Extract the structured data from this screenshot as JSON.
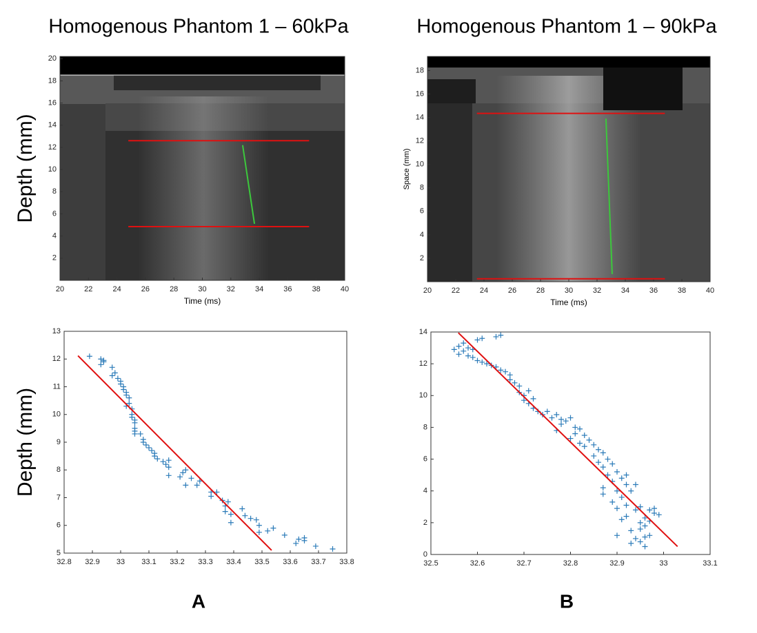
{
  "chart_data": [
    {
      "type": "image",
      "title": "Homogenous Phantom 1 – 60kPa",
      "ylabel": "Depth (mm)",
      "xlabel": "Time (ms)",
      "xlim": [
        20,
        40
      ],
      "ylim": [
        0,
        20.2
      ],
      "xticks": [
        20,
        22,
        24,
        26,
        28,
        30,
        32,
        34,
        36,
        38,
        40
      ],
      "yticks": [
        2,
        4,
        6,
        8,
        10,
        12,
        14,
        16,
        18,
        20
      ],
      "lines": [
        {
          "color": "#e01010",
          "x": [
            24.8,
            37.5
          ],
          "values": [
            12.6,
            12.6
          ]
        },
        {
          "color": "#e01010",
          "x": [
            24.8,
            37.5
          ],
          "values": [
            4.85,
            4.85
          ]
        },
        {
          "color": "#3cc83c",
          "x": [
            32.83,
            33.66
          ],
          "values": [
            12.2,
            5.1
          ]
        }
      ]
    },
    {
      "type": "image",
      "title": "Homogenous Phantom 1 – 90kPa",
      "ylabel": "Space (mm)",
      "xlabel": "Time (ms)",
      "xlim": [
        20,
        40
      ],
      "ylim": [
        0,
        19.2
      ],
      "xticks": [
        20,
        22,
        24,
        26,
        28,
        30,
        32,
        34,
        36,
        38,
        40
      ],
      "yticks": [
        2,
        4,
        6,
        8,
        10,
        12,
        14,
        16,
        18
      ],
      "lines": [
        {
          "color": "#e01010",
          "x": [
            23.5,
            36.8
          ],
          "values": [
            14.35,
            14.35
          ]
        },
        {
          "color": "#e01010",
          "x": [
            23.5,
            36.8
          ],
          "values": [
            0.25,
            0.25
          ]
        },
        {
          "color": "#3cc83c",
          "x": [
            32.63,
            33.07
          ],
          "values": [
            13.9,
            0.65
          ]
        }
      ]
    },
    {
      "type": "scatter",
      "ylabel": "Depth (mm)",
      "panel_label": "A",
      "xlim": [
        32.8,
        33.8
      ],
      "ylim": [
        5,
        13
      ],
      "xticks": [
        32.8,
        32.9,
        33,
        33.1,
        33.2,
        33.3,
        33.4,
        33.5,
        33.6,
        33.7,
        33.8
      ],
      "yticks": [
        5,
        6,
        7,
        8,
        9,
        10,
        11,
        12,
        13
      ],
      "color": "#2a7ab8",
      "x": [
        32.89,
        32.93,
        32.93,
        32.94,
        32.94,
        32.97,
        32.98,
        32.97,
        32.99,
        33.0,
        33.0,
        33.01,
        33.01,
        33.02,
        33.02,
        33.03,
        33.03,
        33.02,
        33.04,
        33.04,
        33.04,
        33.05,
        33.05,
        33.05,
        33.05,
        33.05,
        33.07,
        33.08,
        33.08,
        33.09,
        33.1,
        33.11,
        33.12,
        33.12,
        33.13,
        33.15,
        33.16,
        33.17,
        33.17,
        33.17,
        33.21,
        33.22,
        33.23,
        33.23,
        33.25,
        33.27,
        33.28,
        33.32,
        33.32,
        33.34,
        33.36,
        33.37,
        33.38,
        33.37,
        33.39,
        33.39,
        33.43,
        33.44,
        33.46,
        33.48,
        33.49,
        33.49,
        33.52,
        33.54,
        33.58,
        33.62,
        33.63,
        33.65,
        33.65,
        33.69,
        33.75
      ],
      "values": [
        12.1,
        12.0,
        11.8,
        11.9,
        11.95,
        11.7,
        11.5,
        11.4,
        11.3,
        11.2,
        11.1,
        11.0,
        10.9,
        10.7,
        10.8,
        10.6,
        10.4,
        10.3,
        10.2,
        10.0,
        9.9,
        9.8,
        9.7,
        9.5,
        9.4,
        9.3,
        9.3,
        9.1,
        9.0,
        8.9,
        8.8,
        8.7,
        8.6,
        8.5,
        8.4,
        8.3,
        8.2,
        8.1,
        8.35,
        7.8,
        7.75,
        7.9,
        8.0,
        7.45,
        7.7,
        7.45,
        7.6,
        7.2,
        7.05,
        7.2,
        6.9,
        6.7,
        6.85,
        6.5,
        6.4,
        6.1,
        6.6,
        6.35,
        6.25,
        6.2,
        6.0,
        5.75,
        5.8,
        5.9,
        5.65,
        5.35,
        5.5,
        5.45,
        5.55,
        5.25,
        5.15
      ],
      "lines": [
        {
          "color": "#e01010",
          "x": [
            32.849,
            33.534
          ],
          "values": [
            12.12,
            5.1
          ]
        }
      ]
    },
    {
      "type": "scatter",
      "panel_label": "B",
      "xlim": [
        32.5,
        33.1
      ],
      "ylim": [
        0,
        14
      ],
      "xticks": [
        32.5,
        32.6,
        32.7,
        32.8,
        32.9,
        33,
        33.1
      ],
      "yticks": [
        0,
        2,
        4,
        6,
        8,
        10,
        12,
        14
      ],
      "color": "#2a7ab8",
      "x": [
        32.55,
        32.56,
        32.56,
        32.57,
        32.57,
        32.58,
        32.58,
        32.59,
        32.59,
        32.6,
        32.6,
        32.61,
        32.61,
        32.62,
        32.63,
        32.64,
        32.64,
        32.65,
        32.65,
        32.66,
        32.67,
        32.67,
        32.68,
        32.69,
        32.69,
        32.7,
        32.7,
        32.71,
        32.71,
        32.72,
        32.72,
        32.73,
        32.74,
        32.75,
        32.76,
        32.77,
        32.77,
        32.78,
        32.78,
        32.79,
        32.8,
        32.8,
        32.81,
        32.81,
        32.82,
        32.82,
        32.83,
        32.83,
        32.84,
        32.85,
        32.85,
        32.86,
        32.86,
        32.87,
        32.87,
        32.87,
        32.87,
        32.88,
        32.88,
        32.89,
        32.89,
        32.89,
        32.9,
        32.9,
        32.9,
        32.9,
        32.91,
        32.91,
        32.91,
        32.92,
        32.92,
        32.92,
        32.92,
        32.93,
        32.93,
        32.93,
        32.94,
        32.94,
        32.94,
        32.95,
        32.95,
        32.95,
        32.95,
        32.96,
        32.96,
        32.96,
        32.96,
        32.97,
        32.97,
        32.98,
        32.98,
        32.99,
        32.97
      ],
      "values": [
        12.9,
        13.1,
        12.6,
        13.3,
        12.8,
        12.5,
        13.0,
        12.4,
        12.9,
        12.2,
        13.5,
        13.6,
        12.1,
        12.0,
        11.9,
        13.7,
        11.8,
        13.8,
        11.6,
        11.5,
        11.3,
        11.0,
        10.8,
        10.6,
        10.2,
        10.0,
        9.7,
        10.3,
        9.5,
        9.8,
        9.2,
        9.0,
        8.8,
        9.0,
        8.6,
        8.8,
        7.8,
        8.5,
        8.2,
        8.4,
        8.6,
        7.3,
        8.0,
        7.6,
        7.9,
        7.0,
        7.5,
        6.8,
        7.2,
        6.9,
        6.2,
        6.6,
        5.8,
        6.4,
        5.5,
        4.2,
        3.8,
        6.0,
        5.0,
        5.7,
        4.6,
        3.3,
        5.2,
        4.0,
        2.9,
        1.2,
        4.8,
        3.6,
        2.2,
        5.0,
        4.4,
        3.1,
        2.4,
        4.0,
        1.5,
        0.7,
        4.4,
        2.8,
        1.0,
        3.0,
        2.0,
        1.6,
        0.8,
        2.3,
        1.8,
        1.1,
        0.5,
        2.1,
        1.2,
        2.9,
        2.6,
        2.5,
        2.8
      ],
      "lines": [
        {
          "color": "#e01010",
          "x": [
            32.559,
            33.03
          ],
          "values": [
            13.95,
            0.5
          ]
        }
      ]
    }
  ]
}
